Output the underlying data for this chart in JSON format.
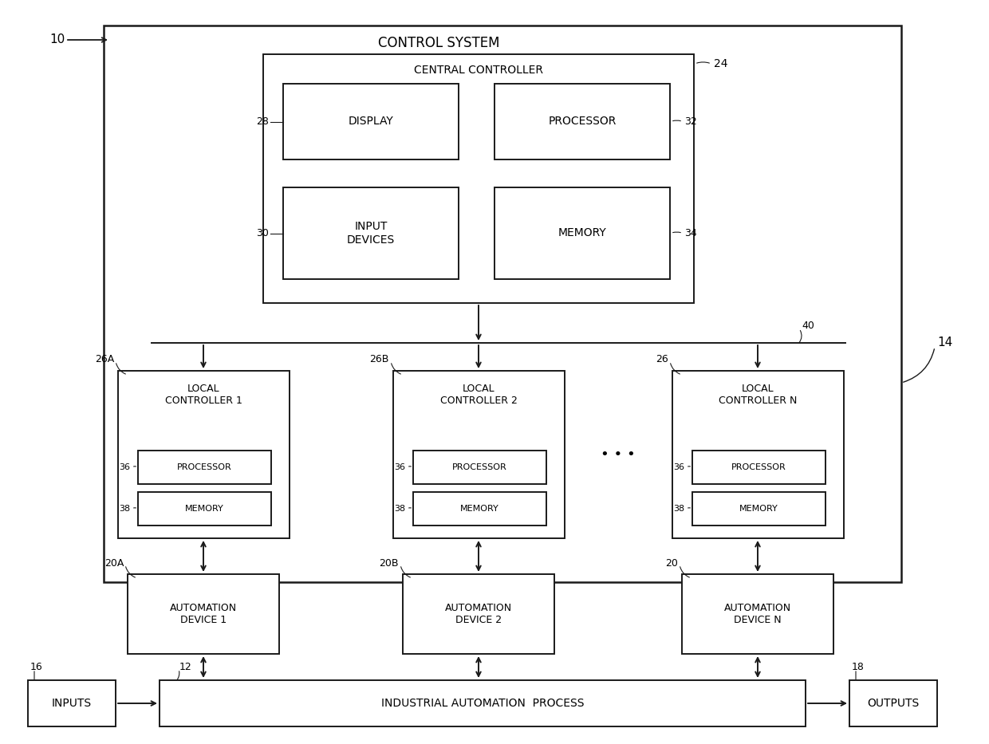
{
  "bg_color": "#ffffff",
  "line_color": "#1a1a1a",
  "box_fill": "#ffffff",
  "inner_box_fill": "#f2f2f2",
  "title_text": "CONTROL SYSTEM",
  "label_10": "10",
  "label_14": "14",
  "label_12": "12",
  "label_16": "16",
  "label_18": "18",
  "label_24": "24",
  "label_28": "28",
  "label_30": "30",
  "label_32": "32",
  "label_34": "34",
  "label_36": "36",
  "label_38": "38",
  "label_40": "40",
  "label_26A": "26A",
  "label_26B": "26B",
  "label_26": "26",
  "label_20A": "20A",
  "label_20B": "20B",
  "label_20": "20",
  "central_controller_text": "CENTRAL CONTROLLER",
  "display_text": "DISPLAY",
  "processor_text_cc": "PROCESSOR",
  "input_devices_text": "INPUT\nDEVICES",
  "memory_text_cc": "MEMORY",
  "lc1_title": "LOCAL\nCONTROLLER 1",
  "lc2_title": "LOCAL\nCONTROLLER 2",
  "lcN_title": "LOCAL\nCONTROLLER N",
  "processor_text": "PROCESSOR",
  "memory_text": "MEMORY",
  "auto1_text": "AUTOMATION\nDEVICE 1",
  "auto2_text": "AUTOMATION\nDEVICE 2",
  "autoN_text": "AUTOMATION\nDEVICE N",
  "iap_text": "INDUSTRIAL AUTOMATION  PROCESS",
  "inputs_text": "INPUTS",
  "outputs_text": "OUTPUTS",
  "dots_text": "• • •"
}
